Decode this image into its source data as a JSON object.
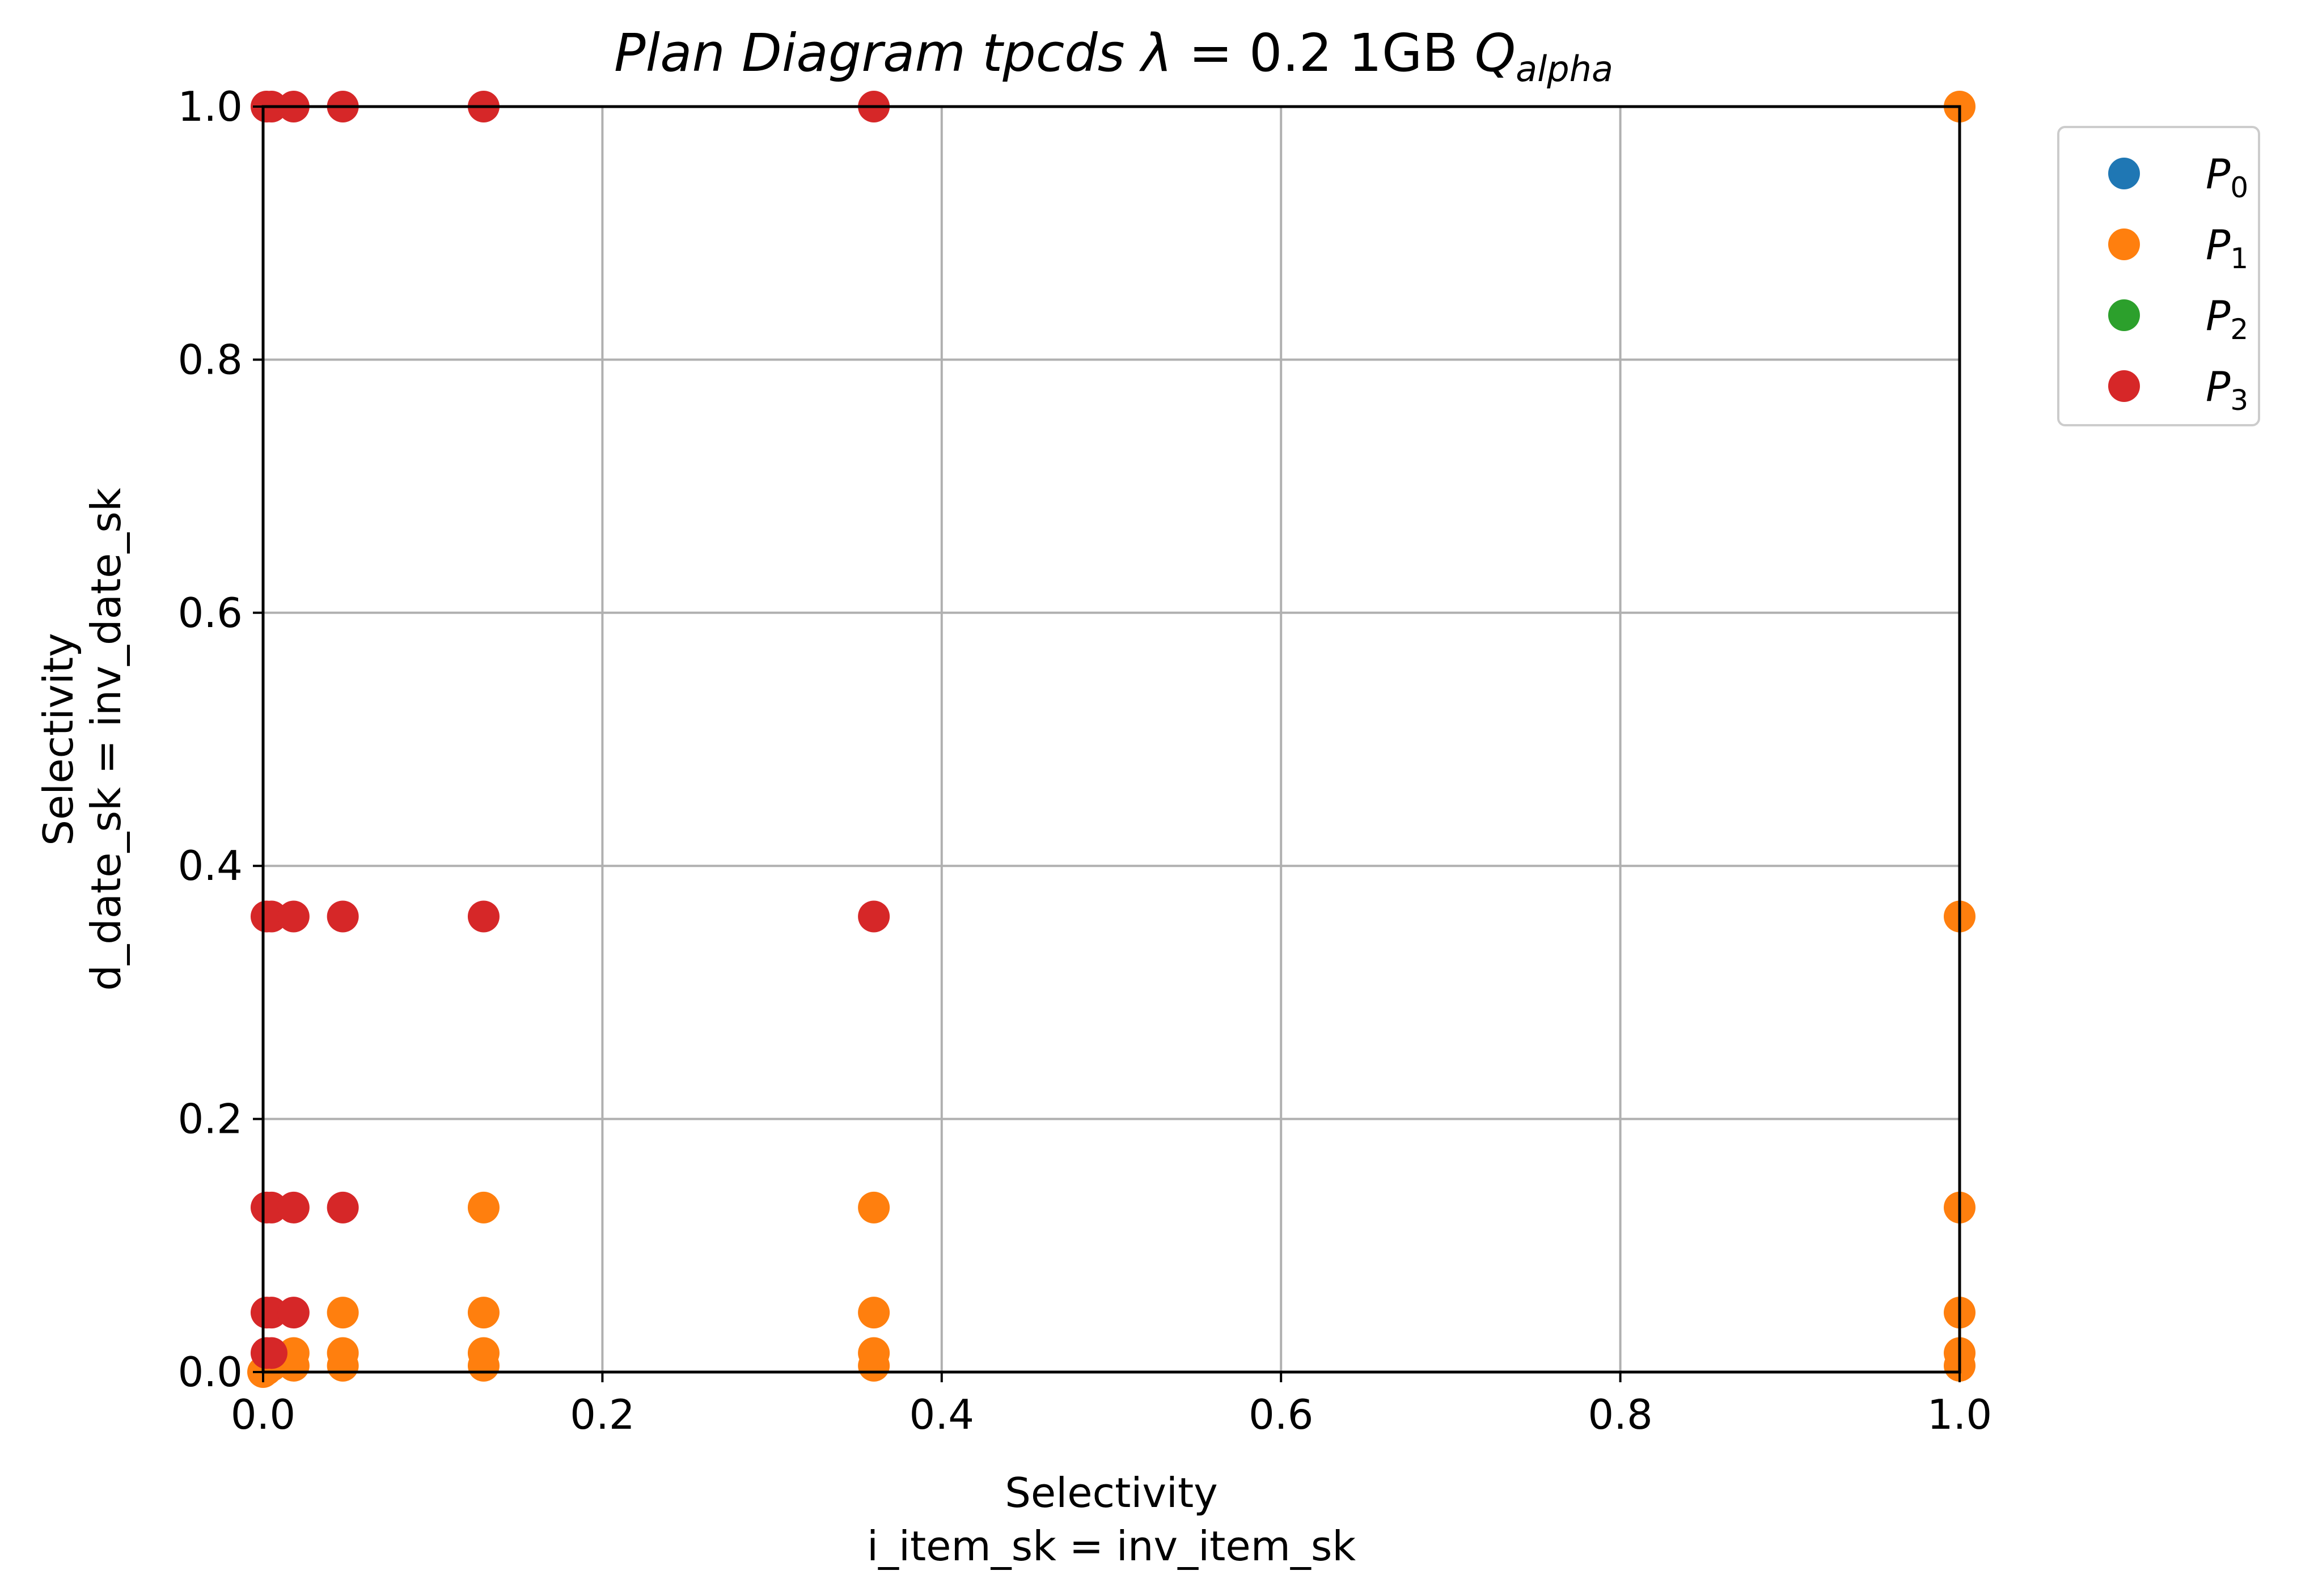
{
  "chart_data": {
    "type": "scatter",
    "title": {
      "prefix": "Plan Diagram tpcds ",
      "lambda": "λ",
      "equals": " = 0.2 1GB ",
      "q": "Q",
      "q_sub": "alpha"
    },
    "xlabel": [
      "Selectivity",
      "i_item_sk = inv_item_sk"
    ],
    "ylabel": [
      "Selectivity",
      "d_date_sk = inv_date_sk"
    ],
    "xlim": [
      0,
      1
    ],
    "ylim": [
      0,
      1
    ],
    "xticks": [
      "0.0",
      "0.2",
      "0.4",
      "0.6",
      "0.8",
      "1.0"
    ],
    "yticks": [
      "0.0",
      "0.2",
      "0.4",
      "0.6",
      "0.8",
      "1.0"
    ],
    "grid": true,
    "legend_position": "outside-top-right",
    "legend": [
      {
        "base": "P",
        "sub": "0",
        "color": "#1f77b4"
      },
      {
        "base": "P",
        "sub": "1",
        "color": "#ff7f0e"
      },
      {
        "base": "P",
        "sub": "2",
        "color": "#2ca02c"
      },
      {
        "base": "P",
        "sub": "3",
        "color": "#d62728"
      }
    ],
    "series": [
      {
        "legend_index": 0,
        "points": []
      },
      {
        "legend_index": 1,
        "points": [
          [
            0.0,
            0.0
          ],
          [
            0.002,
            0.002
          ],
          [
            0.005,
            0.005
          ],
          [
            0.018,
            0.005
          ],
          [
            0.018,
            0.015
          ],
          [
            0.047,
            0.005
          ],
          [
            0.047,
            0.015
          ],
          [
            0.047,
            0.047
          ],
          [
            0.13,
            0.005
          ],
          [
            0.13,
            0.015
          ],
          [
            0.13,
            0.047
          ],
          [
            0.13,
            0.13
          ],
          [
            0.36,
            0.005
          ],
          [
            0.36,
            0.015
          ],
          [
            0.36,
            0.047
          ],
          [
            0.36,
            0.13
          ],
          [
            1.0,
            0.005
          ],
          [
            1.0,
            0.015
          ],
          [
            1.0,
            0.047
          ],
          [
            1.0,
            0.13
          ],
          [
            1.0,
            0.36
          ],
          [
            1.0,
            1.0
          ]
        ]
      },
      {
        "legend_index": 2,
        "points": []
      },
      {
        "legend_index": 3,
        "points": [
          [
            0.002,
            0.015
          ],
          [
            0.005,
            0.015
          ],
          [
            0.002,
            0.047
          ],
          [
            0.005,
            0.047
          ],
          [
            0.018,
            0.047
          ],
          [
            0.002,
            0.13
          ],
          [
            0.005,
            0.13
          ],
          [
            0.018,
            0.13
          ],
          [
            0.047,
            0.13
          ],
          [
            0.002,
            0.36
          ],
          [
            0.005,
            0.36
          ],
          [
            0.018,
            0.36
          ],
          [
            0.047,
            0.36
          ],
          [
            0.13,
            0.36
          ],
          [
            0.36,
            0.36
          ],
          [
            0.002,
            1.0
          ],
          [
            0.005,
            1.0
          ],
          [
            0.018,
            1.0
          ],
          [
            0.047,
            1.0
          ],
          [
            0.13,
            1.0
          ],
          [
            0.36,
            1.0
          ]
        ]
      }
    ]
  }
}
